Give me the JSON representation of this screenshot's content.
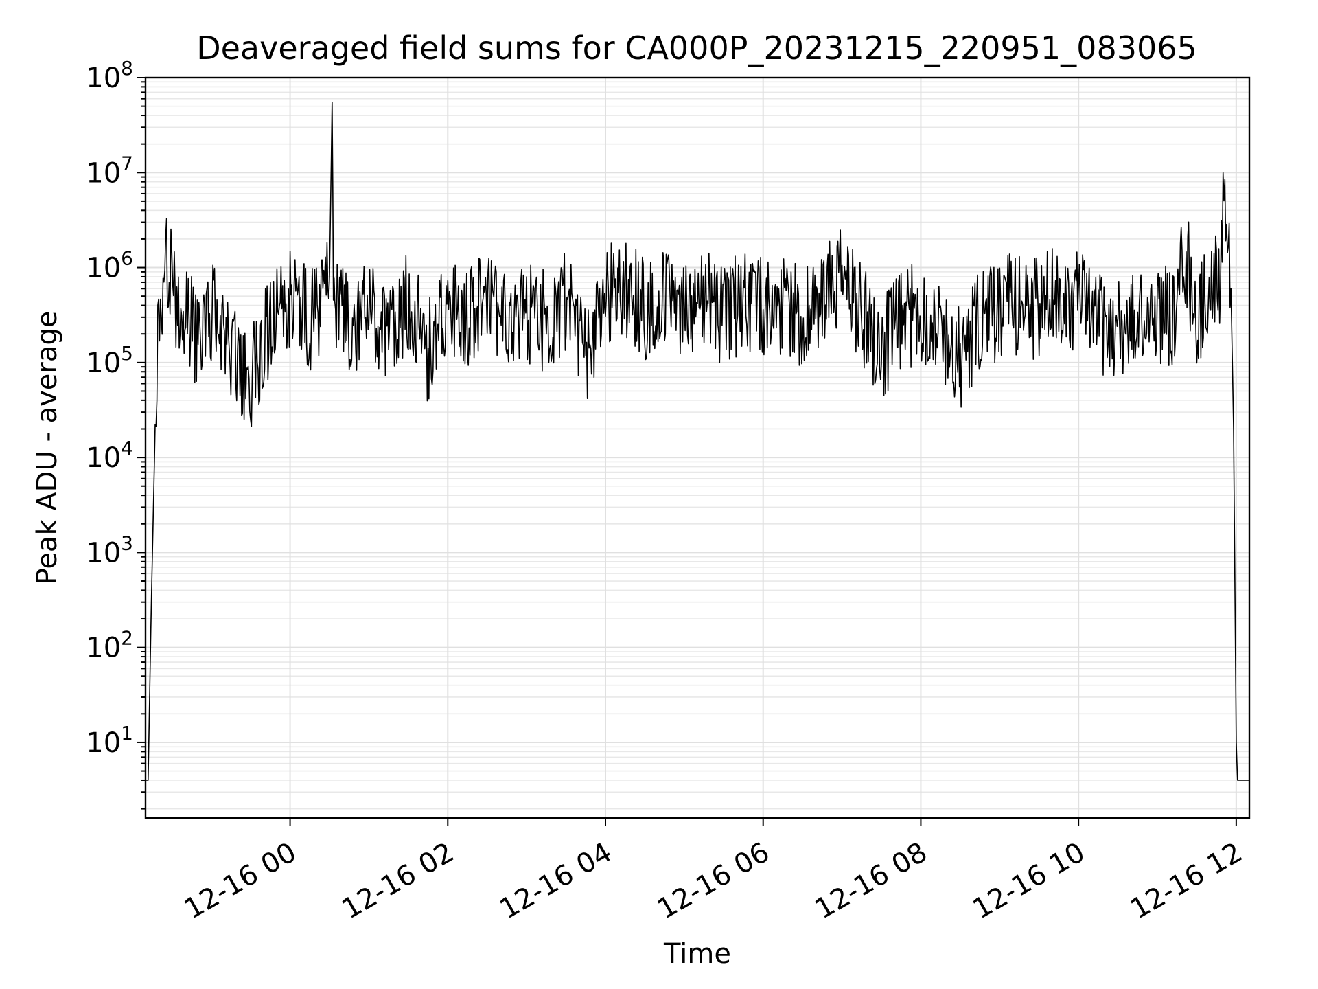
{
  "chart_data": {
    "type": "line",
    "title": "Deaveraged field sums for CA000P_20231215_220951_083065",
    "xlabel": "Time",
    "ylabel": "Peak ADU - average",
    "xlim": [
      "2023-12-15 22:10",
      "2023-12-16 12:10"
    ],
    "ylim": [
      1.6,
      100000000
    ],
    "yscale": "log",
    "grid": true,
    "line_color": "#000000",
    "x_ticks": [
      {
        "value": "2023-12-16 00:00",
        "label": "12-16 00"
      },
      {
        "value": "2023-12-16 02:00",
        "label": "12-16 02"
      },
      {
        "value": "2023-12-16 04:00",
        "label": "12-16 04"
      },
      {
        "value": "2023-12-16 06:00",
        "label": "12-16 06"
      },
      {
        "value": "2023-12-16 08:00",
        "label": "12-16 08"
      },
      {
        "value": "2023-12-16 10:00",
        "label": "12-16 10"
      },
      {
        "value": "2023-12-16 12:00",
        "label": "12-16 12"
      }
    ],
    "y_ticks": [
      {
        "value": 10,
        "base": "10",
        "exp": "1"
      },
      {
        "value": 100,
        "base": "10",
        "exp": "2"
      },
      {
        "value": 1000,
        "base": "10",
        "exp": "3"
      },
      {
        "value": 10000,
        "base": "10",
        "exp": "4"
      },
      {
        "value": 100000,
        "base": "10",
        "exp": "5"
      },
      {
        "value": 1000000,
        "base": "10",
        "exp": "6"
      },
      {
        "value": 10000000,
        "base": "10",
        "exp": "7"
      },
      {
        "value": 100000000,
        "base": "10",
        "exp": "8"
      }
    ],
    "series": [
      {
        "x": [
          "2023-12-15 22:10",
          "2023-12-15 22:12",
          "2023-12-15 22:14",
          "2023-12-15 22:18",
          "2023-12-15 22:22",
          "2023-12-15 22:26",
          "2023-12-15 22:30",
          "2023-12-15 22:35",
          "2023-12-15 22:40",
          "2023-12-15 22:50",
          "2023-12-15 23:00",
          "2023-12-15 23:15",
          "2023-12-15 23:30",
          "2023-12-15 23:45",
          "2023-12-16 00:00",
          "2023-12-16 00:15",
          "2023-12-16 00:30",
          "2023-12-16 00:32",
          "2023-12-16 00:33",
          "2023-12-16 00:34",
          "2023-12-16 00:45",
          "2023-12-16 01:00",
          "2023-12-16 01:15",
          "2023-12-16 01:30",
          "2023-12-16 01:45",
          "2023-12-16 02:00",
          "2023-12-16 02:15",
          "2023-12-16 02:30",
          "2023-12-16 02:45",
          "2023-12-16 03:00",
          "2023-12-16 03:15",
          "2023-12-16 03:30",
          "2023-12-16 03:45",
          "2023-12-16 04:00",
          "2023-12-16 04:15",
          "2023-12-16 04:30",
          "2023-12-16 04:45",
          "2023-12-16 05:00",
          "2023-12-16 05:15",
          "2023-12-16 05:30",
          "2023-12-16 05:45",
          "2023-12-16 06:00",
          "2023-12-16 06:15",
          "2023-12-16 06:30",
          "2023-12-16 06:45",
          "2023-12-16 07:00",
          "2023-12-16 07:15",
          "2023-12-16 07:30",
          "2023-12-16 07:45",
          "2023-12-16 08:00",
          "2023-12-16 08:15",
          "2023-12-16 08:30",
          "2023-12-16 08:45",
          "2023-12-16 09:00",
          "2023-12-16 09:15",
          "2023-12-16 09:30",
          "2023-12-16 09:45",
          "2023-12-16 10:00",
          "2023-12-16 10:15",
          "2023-12-16 10:30",
          "2023-12-16 10:45",
          "2023-12-16 11:00",
          "2023-12-16 11:15",
          "2023-12-16 11:20",
          "2023-12-16 11:30",
          "2023-12-16 11:40",
          "2023-12-16 11:48",
          "2023-12-16 11:50",
          "2023-12-16 11:54",
          "2023-12-16 11:56",
          "2023-12-16 11:58",
          "2023-12-16 12:00",
          "2023-12-16 12:01",
          "2023-12-16 12:03",
          "2023-12-16 12:10"
        ],
        "y": [
          4,
          4,
          150,
          60000,
          600000,
          1200000,
          800000,
          300000,
          400000,
          200000,
          400000,
          150000,
          80000,
          300000,
          600000,
          300000,
          800000,
          55000000,
          900000,
          500000,
          300000,
          400000,
          200000,
          500000,
          150000,
          400000,
          300000,
          500000,
          250000,
          400000,
          300000,
          500000,
          150000,
          600000,
          700000,
          400000,
          500000,
          450000,
          600000,
          350000,
          500000,
          400000,
          500000,
          300000,
          500000,
          900000,
          400000,
          150000,
          300000,
          400000,
          250000,
          120000,
          300000,
          400000,
          500000,
          400000,
          600000,
          500000,
          300000,
          250000,
          300000,
          400000,
          300000,
          2000000,
          300000,
          700000,
          1000000,
          5000000,
          1200000,
          600000,
          20000,
          10,
          4,
          4,
          4
        ],
        "noise_amplitude": 0.55,
        "noise_seed": 83065
      }
    ]
  }
}
